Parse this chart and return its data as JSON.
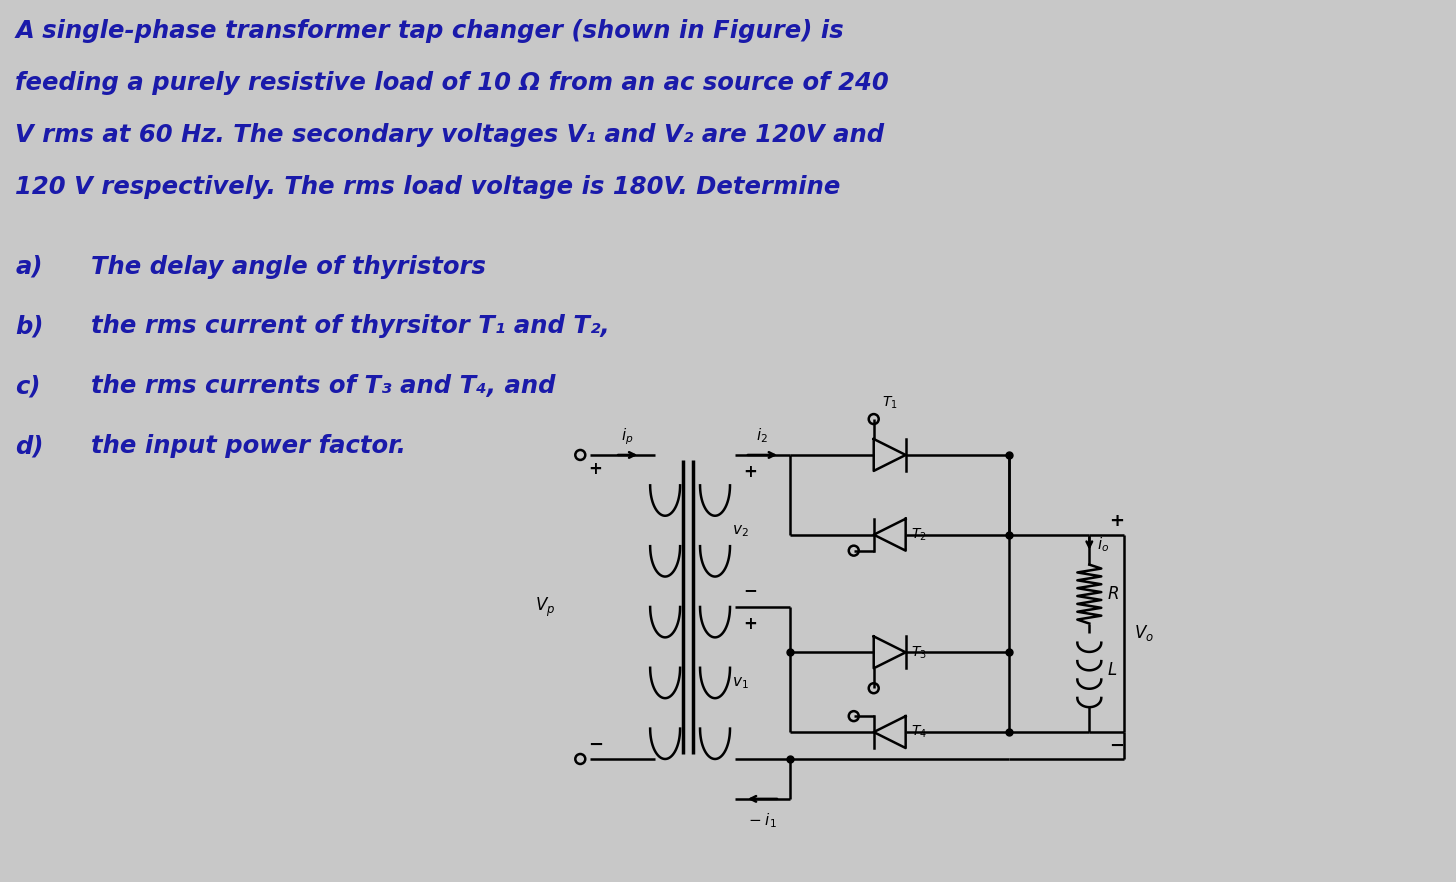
{
  "background_color": "#c8c8c8",
  "text_color": "#1a1aaa",
  "circuit_color": "#000000",
  "title_lines": [
    "A single-phase transformer tap changer (shown in Figure) is",
    "feeding a purely resistive load of 10 Ω from an ac source of 240",
    "V rms at 60 Hz. The secondary voltages V₁ and V₂ are 120V and",
    "120 V respectively. The rms load voltage is 180V. Determine"
  ],
  "items": [
    [
      "a)",
      "The delay angle of thyristors"
    ],
    [
      "b)",
      "the rms current of thyrsitor T₁ and T₂,"
    ],
    [
      "c)",
      "the rms currents of T₃ and T₄, and"
    ],
    [
      "d)",
      "the input power factor."
    ]
  ],
  "fig_width": 14.56,
  "fig_height": 8.82,
  "dpi": 100
}
